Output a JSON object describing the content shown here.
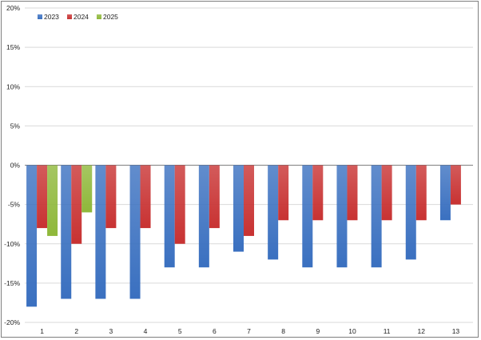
{
  "chart_data": {
    "type": "bar",
    "categories": [
      "1",
      "2",
      "3",
      "4",
      "5",
      "6",
      "7",
      "8",
      "9",
      "10",
      "11",
      "12",
      "13"
    ],
    "series": [
      {
        "name": "2023",
        "color": "#3a70c0",
        "values": [
          -18,
          -17,
          -17,
          -17,
          -13,
          -13,
          -11,
          -12,
          -13,
          -13,
          -13,
          -12,
          -7
        ]
      },
      {
        "name": "2024",
        "color": "#c83232",
        "values": [
          -8,
          -10,
          -8,
          -8,
          -10,
          -8,
          -9,
          -7,
          -7,
          -7,
          -7,
          -7,
          -5
        ]
      },
      {
        "name": "2025",
        "color": "#8fb83a",
        "values": [
          -9,
          -6,
          null,
          null,
          null,
          null,
          null,
          null,
          null,
          null,
          null,
          null,
          null
        ]
      }
    ],
    "ylim": [
      -20,
      20
    ],
    "ytick_step": 5,
    "ytick_format": "percent",
    "grid": true,
    "legend": "top-left",
    "title": "",
    "xlabel": "",
    "ylabel": ""
  }
}
